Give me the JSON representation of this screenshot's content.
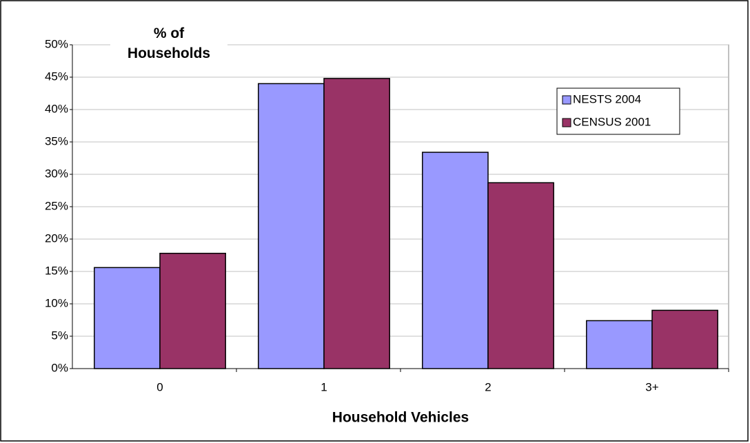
{
  "chart_data": {
    "type": "bar",
    "y_label": "% of Households",
    "x_label": "Household Vehicles",
    "categories": [
      "0",
      "1",
      "2",
      "3+"
    ],
    "series": [
      {
        "name": "NESTS 2004",
        "color": "#9999ff",
        "values": [
          15.6,
          44.0,
          33.4,
          7.4
        ]
      },
      {
        "name": "CENSUS 2001",
        "color": "#993366",
        "values": [
          17.8,
          44.8,
          28.7,
          9.0
        ]
      }
    ],
    "ylim": [
      0,
      50
    ],
    "yticks": [
      {
        "value": 0,
        "label": "0%"
      },
      {
        "value": 5,
        "label": "5%"
      },
      {
        "value": 10,
        "label": "10%"
      },
      {
        "value": 15,
        "label": "15%"
      },
      {
        "value": 20,
        "label": "20%"
      },
      {
        "value": 25,
        "label": "25%"
      },
      {
        "value": 30,
        "label": "30%"
      },
      {
        "value": 35,
        "label": "35%"
      },
      {
        "value": 40,
        "label": "40%"
      },
      {
        "value": 45,
        "label": "45%"
      },
      {
        "value": 50,
        "label": "50%"
      }
    ],
    "grid": true,
    "legend": "upper-right"
  }
}
